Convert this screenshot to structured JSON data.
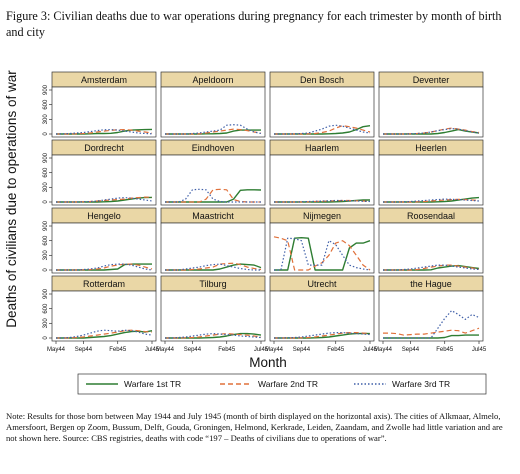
{
  "caption": "Figure 3: Civilian deaths due to war operations during pregnancy for each trimester by month of birth and city",
  "note": "Note: Results for those born between May 1944 and July 1945 (month of birth displayed on the horizontal axis). The cities of Alkmaar, Almelo, Amersfoort, Bergen op Zoom, Bussum, Delft, Gouda, Groningen, Helmond, Kerkrade, Leiden, Zaandam, and Zwolle had little variation and are not shown here. Source: CBS registries, deaths with code “197 – Deaths of civilians due to operations of war”.",
  "colors": {
    "tr1": "#2e7d32",
    "tr2": "#e0703a",
    "tr3": "#3f5fa8",
    "strip": "#ead7a6"
  },
  "chart_data": {
    "type": "line",
    "ylabel": "Deaths of civilians due to operations of war",
    "xlabel": "Month",
    "ylim": [
      0,
      900
    ],
    "yticks": [
      "0",
      "300",
      "600",
      "900"
    ],
    "xticks": [
      "May44",
      "Sep44",
      "Feb45",
      "Jul45"
    ],
    "x": [
      "May44",
      "Jun44",
      "Jul44",
      "Aug44",
      "Sep44",
      "Oct44",
      "Nov44",
      "Dec44",
      "Jan45",
      "Feb45",
      "Mar45",
      "Apr45",
      "May45",
      "Jun45",
      "Jul45"
    ],
    "legend": [
      "Warfare 1st TR",
      "Warfare 2nd TR",
      "Warfare 3rd TR"
    ],
    "panels": [
      {
        "city": "Amsterdam",
        "tr1": [
          0,
          0,
          0,
          0,
          0,
          5,
          10,
          10,
          15,
          30,
          60,
          80,
          85,
          90,
          95
        ],
        "tr2": [
          0,
          0,
          0,
          5,
          10,
          20,
          40,
          60,
          75,
          85,
          90,
          80,
          60,
          40,
          20
        ],
        "tr3": [
          0,
          5,
          10,
          20,
          30,
          50,
          70,
          85,
          90,
          80,
          60,
          40,
          20,
          10,
          5
        ]
      },
      {
        "city": "Apeldoorn",
        "tr1": [
          0,
          0,
          0,
          0,
          0,
          0,
          5,
          5,
          10,
          20,
          60,
          80,
          80,
          80,
          80
        ],
        "tr2": [
          0,
          0,
          0,
          0,
          0,
          5,
          20,
          40,
          60,
          80,
          100,
          90,
          70,
          40,
          20
        ],
        "tr3": [
          0,
          0,
          0,
          0,
          10,
          20,
          40,
          60,
          80,
          180,
          190,
          180,
          100,
          40,
          10
        ]
      },
      {
        "city": "Den Bosch",
        "tr1": [
          0,
          0,
          0,
          0,
          0,
          0,
          0,
          0,
          5,
          10,
          20,
          40,
          90,
          150,
          170
        ],
        "tr2": [
          0,
          0,
          0,
          0,
          0,
          5,
          10,
          30,
          60,
          120,
          170,
          150,
          120,
          80,
          40
        ],
        "tr3": [
          0,
          0,
          0,
          5,
          10,
          20,
          60,
          100,
          160,
          180,
          160,
          120,
          80,
          40,
          20
        ]
      },
      {
        "city": "Deventer",
        "tr1": [
          0,
          0,
          0,
          0,
          0,
          0,
          0,
          0,
          10,
          30,
          60,
          90,
          60,
          40,
          20
        ],
        "tr2": [
          0,
          0,
          0,
          0,
          5,
          10,
          20,
          40,
          70,
          100,
          120,
          100,
          80,
          50,
          30
        ],
        "tr3": [
          0,
          0,
          0,
          0,
          5,
          10,
          20,
          40,
          70,
          90,
          110,
          100,
          70,
          40,
          20
        ]
      },
      {
        "city": "Dordrecht",
        "tr1": [
          0,
          0,
          0,
          0,
          0,
          0,
          0,
          5,
          10,
          20,
          40,
          60,
          80,
          90,
          95
        ],
        "tr2": [
          0,
          0,
          0,
          0,
          5,
          10,
          20,
          30,
          40,
          50,
          60,
          80,
          90,
          100,
          95
        ],
        "tr3": [
          0,
          0,
          0,
          0,
          5,
          10,
          20,
          40,
          60,
          80,
          90,
          80,
          60,
          40,
          20
        ]
      },
      {
        "city": "Eindhoven",
        "tr1": [
          0,
          0,
          0,
          0,
          0,
          0,
          0,
          0,
          0,
          0,
          60,
          240,
          250,
          250,
          245
        ],
        "tr2": [
          0,
          0,
          0,
          0,
          0,
          0,
          60,
          250,
          260,
          250,
          50,
          10,
          0,
          0,
          0
        ],
        "tr3": [
          0,
          0,
          0,
          60,
          250,
          260,
          250,
          60,
          10,
          0,
          0,
          0,
          0,
          0,
          0
        ]
      },
      {
        "city": "Haarlem",
        "tr1": [
          0,
          0,
          0,
          0,
          0,
          0,
          0,
          0,
          0,
          5,
          10,
          20,
          30,
          40,
          40
        ],
        "tr2": [
          0,
          0,
          0,
          0,
          0,
          5,
          10,
          15,
          20,
          25,
          30,
          30,
          25,
          20,
          15
        ],
        "tr3": [
          0,
          0,
          0,
          0,
          5,
          10,
          15,
          20,
          25,
          30,
          30,
          25,
          20,
          15,
          10
        ]
      },
      {
        "city": "Heerlen",
        "tr1": [
          0,
          0,
          0,
          0,
          0,
          0,
          0,
          0,
          5,
          10,
          20,
          40,
          60,
          80,
          90
        ],
        "tr2": [
          0,
          0,
          0,
          0,
          0,
          5,
          10,
          20,
          30,
          40,
          50,
          55,
          50,
          40,
          30
        ],
        "tr3": [
          0,
          0,
          0,
          5,
          10,
          20,
          30,
          40,
          50,
          60,
          55,
          50,
          40,
          30,
          20
        ]
      },
      {
        "city": "Hengelo",
        "tr1": [
          0,
          0,
          0,
          0,
          0,
          0,
          0,
          0,
          10,
          20,
          110,
          120,
          120,
          120,
          120
        ],
        "tr2": [
          0,
          0,
          0,
          0,
          5,
          10,
          20,
          40,
          80,
          100,
          120,
          120,
          100,
          60,
          20
        ],
        "tr3": [
          0,
          0,
          0,
          0,
          10,
          20,
          40,
          80,
          110,
          120,
          120,
          100,
          60,
          20,
          0
        ]
      },
      {
        "city": "Maastricht",
        "tr1": [
          0,
          0,
          0,
          0,
          0,
          0,
          0,
          0,
          20,
          60,
          100,
          120,
          110,
          100,
          50
        ],
        "tr2": [
          0,
          0,
          0,
          0,
          10,
          20,
          40,
          60,
          120,
          130,
          140,
          110,
          60,
          30,
          10
        ],
        "tr3": [
          0,
          0,
          0,
          20,
          40,
          60,
          90,
          110,
          120,
          90,
          60,
          30,
          10,
          0,
          0
        ]
      },
      {
        "city": "Nijmegen",
        "tr1": [
          0,
          0,
          0,
          650,
          660,
          650,
          0,
          0,
          0,
          0,
          0,
          450,
          550,
          550,
          600
        ],
        "tr2": [
          680,
          650,
          600,
          0,
          0,
          0,
          80,
          150,
          300,
          550,
          600,
          500,
          300,
          100,
          0
        ],
        "tr3": [
          0,
          0,
          650,
          640,
          600,
          100,
          100,
          100,
          600,
          520,
          300,
          100,
          50,
          20,
          0
        ]
      },
      {
        "city": "Roosendaal",
        "tr1": [
          0,
          0,
          0,
          0,
          0,
          0,
          0,
          5,
          40,
          60,
          80,
          90,
          70,
          50,
          30
        ],
        "tr2": [
          0,
          0,
          0,
          0,
          0,
          10,
          30,
          60,
          80,
          100,
          100,
          80,
          60,
          40,
          20
        ],
        "tr3": [
          0,
          0,
          0,
          10,
          20,
          40,
          60,
          80,
          100,
          100,
          80,
          60,
          40,
          20,
          10
        ]
      },
      {
        "city": "Rotterdam",
        "tr1": [
          0,
          0,
          0,
          0,
          0,
          10,
          20,
          30,
          50,
          80,
          110,
          130,
          140,
          120,
          150
        ],
        "tr2": [
          0,
          0,
          0,
          10,
          20,
          40,
          60,
          80,
          100,
          120,
          150,
          160,
          150,
          130,
          120
        ],
        "tr3": [
          0,
          0,
          10,
          30,
          60,
          100,
          140,
          160,
          150,
          140,
          160,
          150,
          120,
          80,
          60
        ]
      },
      {
        "city": "Tilburg",
        "tr1": [
          0,
          0,
          0,
          0,
          0,
          0,
          5,
          10,
          20,
          40,
          70,
          90,
          90,
          80,
          60
        ],
        "tr2": [
          0,
          0,
          0,
          5,
          10,
          20,
          40,
          60,
          80,
          90,
          80,
          70,
          60,
          40,
          20
        ],
        "tr3": [
          0,
          0,
          10,
          20,
          40,
          60,
          80,
          90,
          80,
          70,
          60,
          40,
          30,
          20,
          10
        ]
      },
      {
        "city": "Utrecht",
        "tr1": [
          0,
          0,
          0,
          0,
          0,
          0,
          5,
          10,
          20,
          40,
          60,
          80,
          90,
          95,
          90
        ],
        "tr2": [
          0,
          0,
          0,
          0,
          5,
          10,
          20,
          40,
          60,
          80,
          100,
          110,
          110,
          100,
          90
        ],
        "tr3": [
          0,
          0,
          5,
          10,
          20,
          40,
          60,
          80,
          100,
          110,
          110,
          100,
          90,
          80,
          70
        ]
      },
      {
        "city": "the Hague",
        "tr1": [
          0,
          0,
          0,
          0,
          0,
          0,
          0,
          0,
          0,
          10,
          50,
          50,
          60,
          60,
          60
        ],
        "tr2": [
          100,
          100,
          90,
          60,
          70,
          80,
          80,
          100,
          120,
          140,
          160,
          150,
          100,
          150,
          200
        ],
        "tr3": [
          0,
          0,
          0,
          0,
          0,
          0,
          0,
          0,
          200,
          400,
          560,
          480,
          380,
          480,
          420
        ]
      }
    ]
  }
}
